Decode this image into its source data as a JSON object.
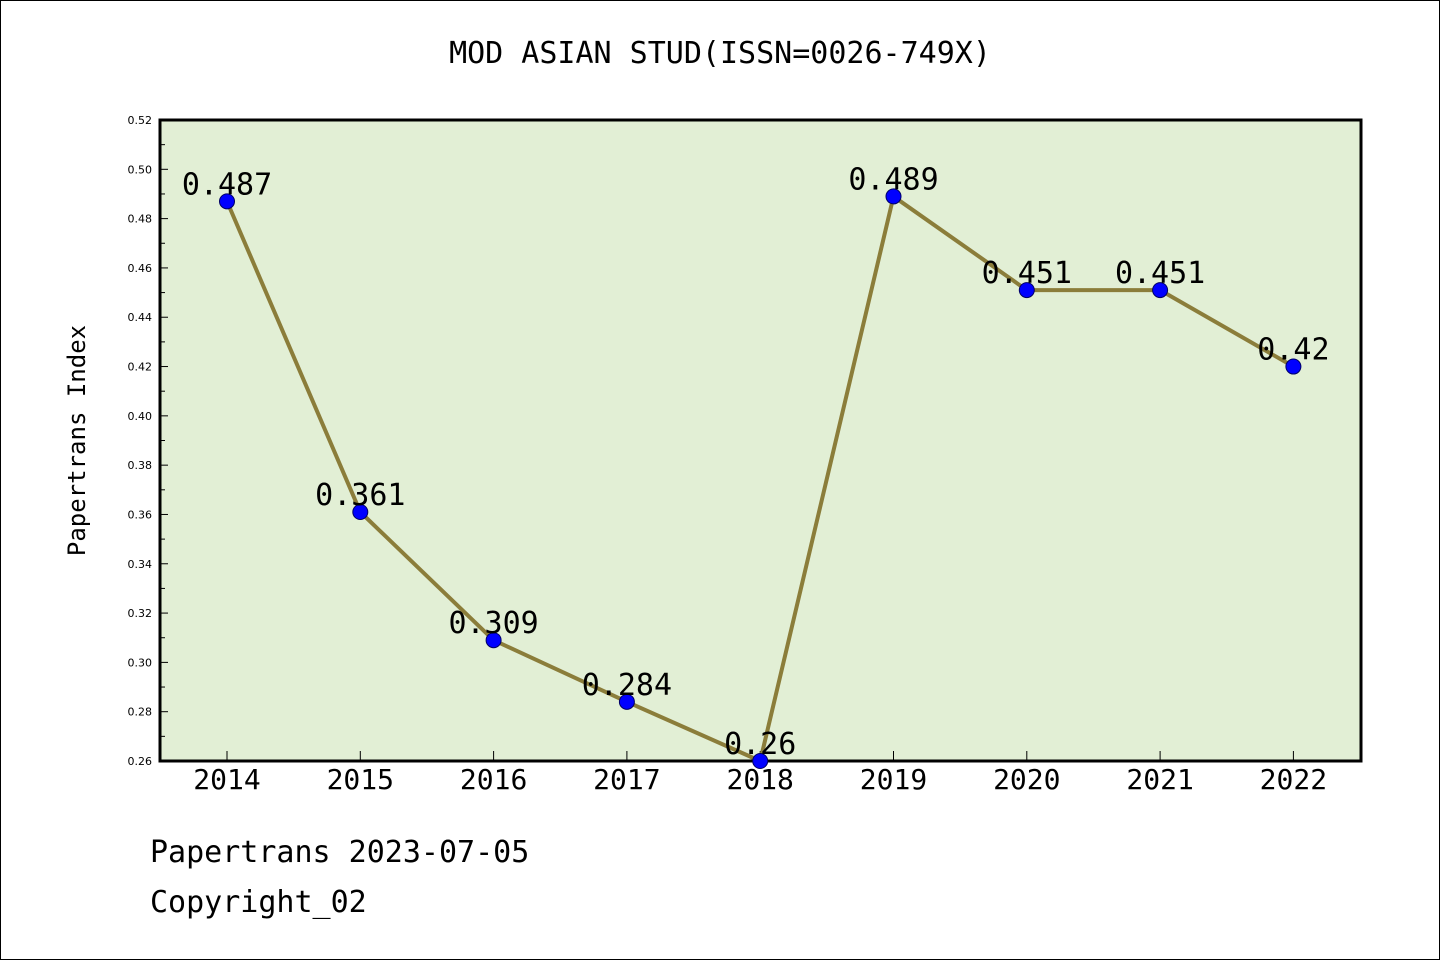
{
  "chart_data": {
    "type": "line",
    "title": "MOD ASIAN STUD(ISSN=0026-749X)",
    "xlabel": "",
    "ylabel": "Papertrans Index",
    "categories": [
      "2014",
      "2015",
      "2016",
      "2017",
      "2018",
      "2019",
      "2020",
      "2021",
      "2022"
    ],
    "series": [
      {
        "values": [
          0.487,
          0.361,
          0.309,
          0.284,
          0.26,
          0.489,
          0.451,
          0.451,
          0.42
        ],
        "labels": [
          "0.487",
          "0.361",
          "0.309",
          "0.284",
          "0.26",
          "0.489",
          "0.451",
          "0.451",
          "0.42"
        ],
        "line_color": "#8b7d3a",
        "marker_color": "#0000ff"
      }
    ],
    "ylim": [
      0.26,
      0.52
    ],
    "yticks": [
      "0.26",
      "0.28",
      "0.30",
      "0.32",
      "0.34",
      "0.36",
      "0.38",
      "0.40",
      "0.42",
      "0.44",
      "0.46",
      "0.48",
      "0.50",
      "0.52"
    ],
    "plot_background": "#e2efd5",
    "grid": false,
    "legend": "none"
  },
  "footer": {
    "date_line": "Papertrans 2023-07-05",
    "copyright": "Copyright_02"
  }
}
